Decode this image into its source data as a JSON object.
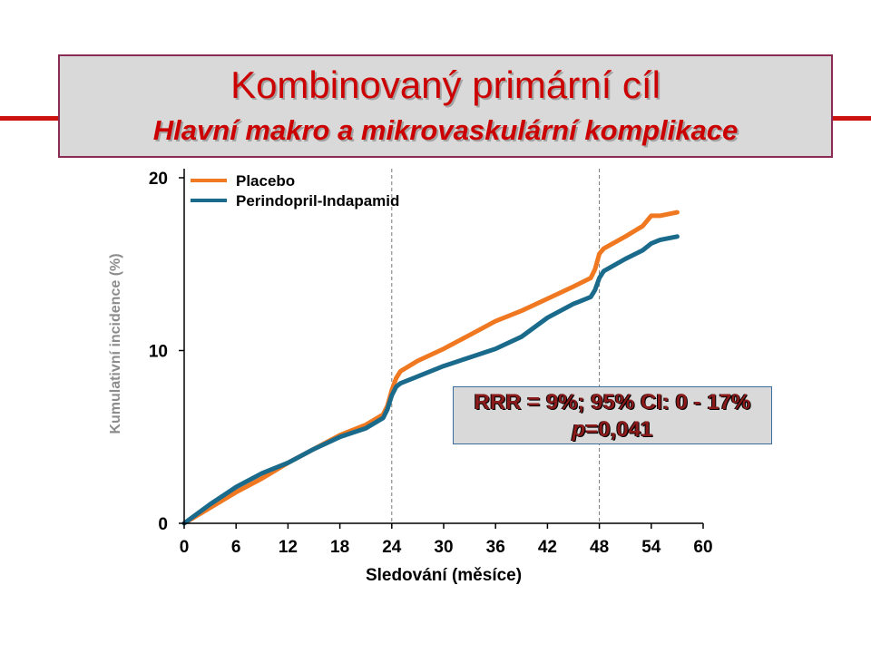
{
  "slide": {
    "title_line1": "Kombinovaný primární cíl",
    "title_line2": "Hlavní makro a mikrovaskulární komplikace",
    "title_color": "#cc0000",
    "accent_color": "#cc1111"
  },
  "stats": {
    "line1": "RRR = 9%; 95% CI: 0 - 17%",
    "line2_p": "p",
    "line2_value": "=0,041",
    "text_color": "#8b1a1a"
  },
  "chart_data": {
    "type": "line",
    "title": "",
    "xlabel": "Sledování (měsíce)",
    "ylabel": "Kumulativní incidence (%)",
    "xlim": [
      0,
      60
    ],
    "ylim": [
      0,
      20
    ],
    "x_ticks": [
      "0",
      "6",
      "12",
      "18",
      "24",
      "30",
      "36",
      "42",
      "48",
      "54",
      "60"
    ],
    "y_ticks": [
      "0",
      "10",
      "20"
    ],
    "reference_lines_x": [
      24,
      48
    ],
    "legend_position": "top-left",
    "grid": false,
    "series": [
      {
        "name": "Placebo",
        "color": "#f07820",
        "x": [
          0,
          3,
          6,
          9,
          12,
          15,
          18,
          21,
          23,
          23.5,
          24,
          24.5,
          25,
          27,
          30,
          33,
          36,
          39,
          42,
          45,
          47,
          47.5,
          48,
          48.5,
          51,
          53,
          54,
          55,
          57
        ],
        "y": [
          0,
          0.9,
          1.8,
          2.6,
          3.5,
          4.3,
          5.1,
          5.7,
          6.3,
          6.8,
          7.7,
          8.4,
          8.8,
          9.4,
          10.1,
          10.9,
          11.7,
          12.3,
          13.0,
          13.7,
          14.2,
          14.7,
          15.6,
          15.9,
          16.6,
          17.2,
          17.8,
          17.8,
          18.0
        ]
      },
      {
        "name": "Perindopril-Indapamid",
        "color": "#1a6a8c",
        "x": [
          0,
          3,
          6,
          9,
          12,
          15,
          18,
          21,
          23,
          23.5,
          24,
          24.5,
          25,
          27,
          30,
          33,
          36,
          39,
          42,
          45,
          47,
          47.5,
          48,
          48.5,
          51,
          53,
          54,
          55,
          57
        ],
        "y": [
          0,
          1.1,
          2.1,
          2.9,
          3.5,
          4.3,
          5.0,
          5.5,
          6.1,
          6.6,
          7.4,
          7.9,
          8.1,
          8.5,
          9.1,
          9.6,
          10.1,
          10.8,
          11.9,
          12.7,
          13.1,
          13.5,
          14.2,
          14.6,
          15.3,
          15.8,
          16.2,
          16.4,
          16.6
        ]
      }
    ]
  }
}
